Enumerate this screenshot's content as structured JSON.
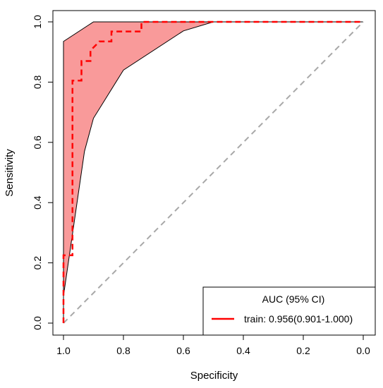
{
  "chart_data": {
    "type": "line",
    "subtype": "roc",
    "xlabel": "Specificity",
    "ylabel": "Sensitivity",
    "xlim": [
      1.0,
      0.0
    ],
    "ylim": [
      0.0,
      1.0
    ],
    "x_reversed": true,
    "x_ticks": [
      "1.0",
      "0.8",
      "0.6",
      "0.4",
      "0.2",
      "0.0"
    ],
    "y_ticks": [
      "0.0",
      "0.2",
      "0.4",
      "0.6",
      "0.8",
      "1.0"
    ],
    "x_tick_values": [
      1.0,
      0.8,
      0.6,
      0.4,
      0.2,
      0.0
    ],
    "y_tick_values": [
      0.0,
      0.2,
      0.4,
      0.6,
      0.8,
      1.0
    ],
    "grid": false,
    "legend_position": "bottom-right",
    "legend_title": "AUC (95% CI)",
    "series": [
      {
        "name": "train: 0.956(0.901-1.000)",
        "color": "#ff0000",
        "line_style": "dashed",
        "x": [
          1.0,
          1.0,
          0.97,
          0.97,
          0.97,
          0.94,
          0.94,
          0.91,
          0.91,
          0.88,
          0.84,
          0.84,
          0.74,
          0.74,
          0.0
        ],
        "y": [
          0.0,
          0.225,
          0.225,
          0.29,
          0.805,
          0.805,
          0.87,
          0.87,
          0.905,
          0.935,
          0.935,
          0.968,
          0.968,
          1.0,
          1.0
        ]
      }
    ],
    "confidence_band": {
      "fill_color": "#f99a9a",
      "upper": {
        "x": [
          1.0,
          1.0,
          0.9,
          0.0
        ],
        "y": [
          0.0,
          0.935,
          1.0,
          1.0
        ]
      },
      "lower": {
        "x": [
          1.0,
          0.93,
          0.9,
          0.8,
          0.6,
          0.5,
          0.0
        ],
        "y": [
          0.09,
          0.57,
          0.68,
          0.84,
          0.97,
          1.0,
          1.0
        ]
      }
    },
    "reference_line": {
      "color": "#a8a8a8",
      "line_style": "dashed",
      "x": [
        1.0,
        0.0
      ],
      "y": [
        0.0,
        1.0
      ]
    }
  }
}
